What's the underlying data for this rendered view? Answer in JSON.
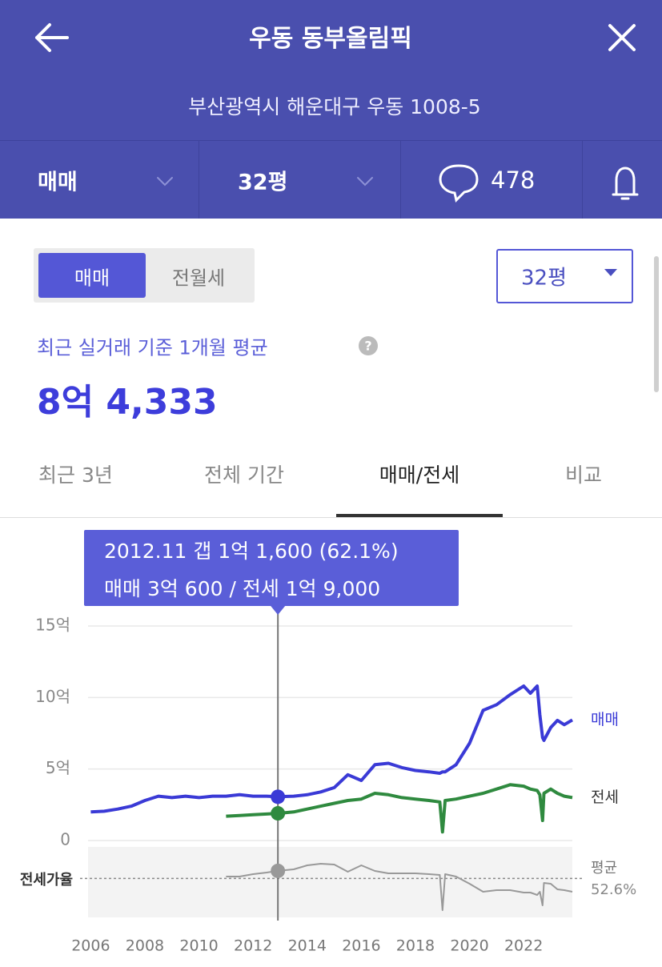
{
  "header": {
    "title": "우동 동부올림픽",
    "subtitle": "부산광역시 해운대구 우동 1008-5"
  },
  "filters": {
    "deal_type": "매매",
    "size": "32평",
    "comments": "478"
  },
  "toggle": [
    "매매",
    "전월세"
  ],
  "size_select": "32평",
  "summary": {
    "label": "최근 실거래 기준 1개월 평균",
    "price": "8억 4,333"
  },
  "tabs": [
    "최근 3년",
    "전체 기간",
    "매매/전세",
    "비교"
  ],
  "chart_data": {
    "type": "line",
    "tooltip": [
      "2012.11  갭 1억 1,600 (62.1%)",
      "매매 3억 600 / 전세 1억 9,000"
    ],
    "selected_x": 2012.917,
    "x": [
      2006,
      2006.5,
      2007,
      2007.5,
      2008,
      2008.5,
      2009,
      2009.5,
      2010,
      2010.5,
      2011,
      2011.5,
      2012,
      2012.5,
      2012.917,
      2013.5,
      2014,
      2014.5,
      2015,
      2015.5,
      2016,
      2016.5,
      2017,
      2017.5,
      2018,
      2018.5,
      2018.9,
      2019,
      2019.1,
      2019.5,
      2020,
      2020.5,
      2021,
      2021.5,
      2022,
      2022.25,
      2022.5,
      2022.6,
      2022.7,
      2022.75,
      2023,
      2023.25,
      2023.5,
      2023.8
    ],
    "xlim": [
      2005.9,
      2023.8
    ],
    "xticks": [
      2006,
      2008,
      2010,
      2012,
      2014,
      2016,
      2018,
      2020,
      2022
    ],
    "ylim": [
      0,
      15
    ],
    "yticks": [
      0,
      {
        "value": 5,
        "label": "5억"
      },
      {
        "value": 10,
        "label": "10억"
      },
      {
        "value": 15,
        "label": "15억"
      }
    ],
    "y2lim": [
      0,
      100
    ],
    "y2_label": "전세가율",
    "average": {
      "value": 52.6,
      "label": "52.6%"
    },
    "average_label": "평균",
    "grid": true,
    "series": [
      {
        "name": "매매",
        "color": "#3a3ad6",
        "values": [
          2.0,
          2.05,
          2.2,
          2.4,
          2.8,
          3.1,
          3.0,
          3.1,
          3.0,
          3.1,
          3.1,
          3.2,
          3.1,
          3.1,
          3.06,
          3.1,
          3.2,
          3.4,
          3.7,
          4.6,
          4.2,
          5.3,
          5.4,
          5.1,
          4.9,
          4.8,
          4.7,
          4.8,
          4.8,
          5.3,
          6.8,
          9.1,
          9.5,
          10.2,
          10.8,
          10.3,
          10.8,
          8.8,
          7.2,
          7.0,
          7.9,
          8.4,
          8.1,
          8.43
        ]
      },
      {
        "name": "전세",
        "color": "#2f8a3f",
        "values": [
          null,
          null,
          null,
          null,
          null,
          null,
          null,
          null,
          null,
          null,
          1.7,
          1.75,
          1.8,
          1.85,
          1.9,
          2.0,
          2.2,
          2.4,
          2.6,
          2.8,
          2.9,
          3.3,
          3.2,
          3.0,
          2.9,
          2.8,
          2.7,
          0.6,
          2.8,
          2.9,
          3.1,
          3.3,
          3.6,
          3.9,
          3.8,
          3.6,
          3.5,
          3.2,
          1.4,
          3.3,
          3.6,
          3.3,
          3.1,
          3.0
        ]
      },
      {
        "color": "#999999",
        "axis": "y2",
        "values": [
          null,
          null,
          null,
          null,
          null,
          null,
          null,
          null,
          null,
          null,
          55,
          55,
          58,
          60,
          62.1,
          64,
          69,
          71,
          70,
          61,
          69,
          62,
          59,
          59,
          59,
          58,
          57,
          13,
          58,
          55,
          46,
          36,
          38,
          38,
          35,
          35,
          32,
          36,
          19,
          47,
          46,
          39,
          38,
          36
        ]
      }
    ]
  }
}
